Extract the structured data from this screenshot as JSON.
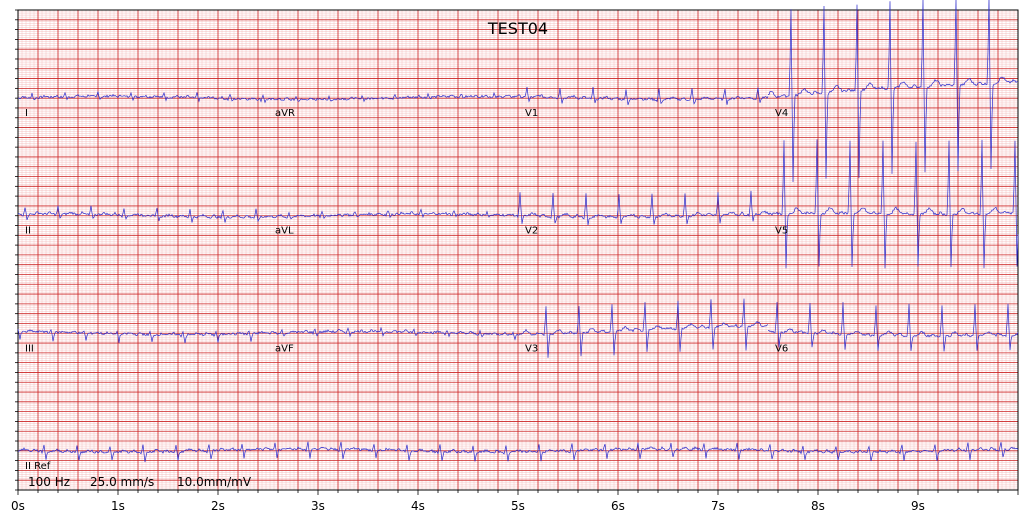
{
  "chart_data": {
    "type": "line",
    "title": "TEST04",
    "info": {
      "sampling": "100 Hz",
      "speed": "25.0 mm/s",
      "gain": "10.0mm/mV"
    },
    "xlim": [
      0,
      10
    ],
    "x_ticks": [
      "0s",
      "1s",
      "2s",
      "3s",
      "4s",
      "5s",
      "6s",
      "7s",
      "8s",
      "9s"
    ],
    "grid": true,
    "grid_colors": {
      "major": "#cc2222",
      "minor": "#f3b3b3"
    },
    "trace_color": "#2b2bcc",
    "rows": [
      {
        "baseline_mv": -0.5,
        "segments": [
          {
            "lead": "I",
            "t_start": 0,
            "t_end": 2.5,
            "r_amp": 0.25,
            "s_amp": -0.12,
            "t_amp": 0.06
          },
          {
            "lead": "aVR",
            "t_start": 2.5,
            "t_end": 5.0,
            "r_amp": 0.18,
            "s_amp": -0.08,
            "t_amp": 0.04
          },
          {
            "lead": "V1",
            "t_start": 5.0,
            "t_end": 7.5,
            "r_amp": 0.55,
            "s_amp": -0.25,
            "t_amp": 0.1
          },
          {
            "lead": "V4",
            "t_start": 7.5,
            "t_end": 10.0,
            "r_amp": 4.5,
            "s_amp": -4.5,
            "t_amp": 0.3,
            "drift": 1.8
          }
        ]
      },
      {
        "baseline_mv": -6.5,
        "segments": [
          {
            "lead": "II",
            "t_start": 0,
            "t_end": 2.5,
            "r_amp": 0.4,
            "s_amp": -0.25,
            "t_amp": 0.08
          },
          {
            "lead": "aVL",
            "t_start": 2.5,
            "t_end": 5.0,
            "r_amp": 0.2,
            "s_amp": -0.1,
            "t_amp": 0.05
          },
          {
            "lead": "V2",
            "t_start": 5.0,
            "t_end": 7.5,
            "r_amp": 1.2,
            "s_amp": -0.4,
            "t_amp": 0.15
          },
          {
            "lead": "V5",
            "t_start": 7.5,
            "t_end": 10.0,
            "r_amp": 3.8,
            "s_amp": -2.8,
            "t_amp": 0.3,
            "drift": 0.4
          }
        ]
      },
      {
        "baseline_mv": -12.5,
        "segments": [
          {
            "lead": "III",
            "t_start": 0,
            "t_end": 2.5,
            "r_amp": 0.15,
            "s_amp": -0.4,
            "t_amp": 0.06
          },
          {
            "lead": "aVF",
            "t_start": 2.5,
            "t_end": 5.0,
            "r_amp": 0.15,
            "s_amp": -0.2,
            "t_amp": 0.05
          },
          {
            "lead": "V3",
            "t_start": 5.0,
            "t_end": 7.5,
            "r_amp": 1.4,
            "s_amp": -1.2,
            "t_amp": 0.2,
            "drift": 0.6
          },
          {
            "lead": "V6",
            "t_start": 7.5,
            "t_end": 10.0,
            "r_amp": 1.6,
            "s_amp": -0.8,
            "t_amp": 0.2,
            "drift": -0.2
          }
        ]
      },
      {
        "baseline_mv": -18.5,
        "segments": [
          {
            "lead": "II Ref",
            "t_start": 0,
            "t_end": 10.0,
            "r_amp": 0.35,
            "s_amp": -0.45,
            "t_amp": 0.08
          }
        ]
      }
    ],
    "ylim_mv": [
      -20.5,
      4.0
    ],
    "beat_interval_s": 0.33
  }
}
